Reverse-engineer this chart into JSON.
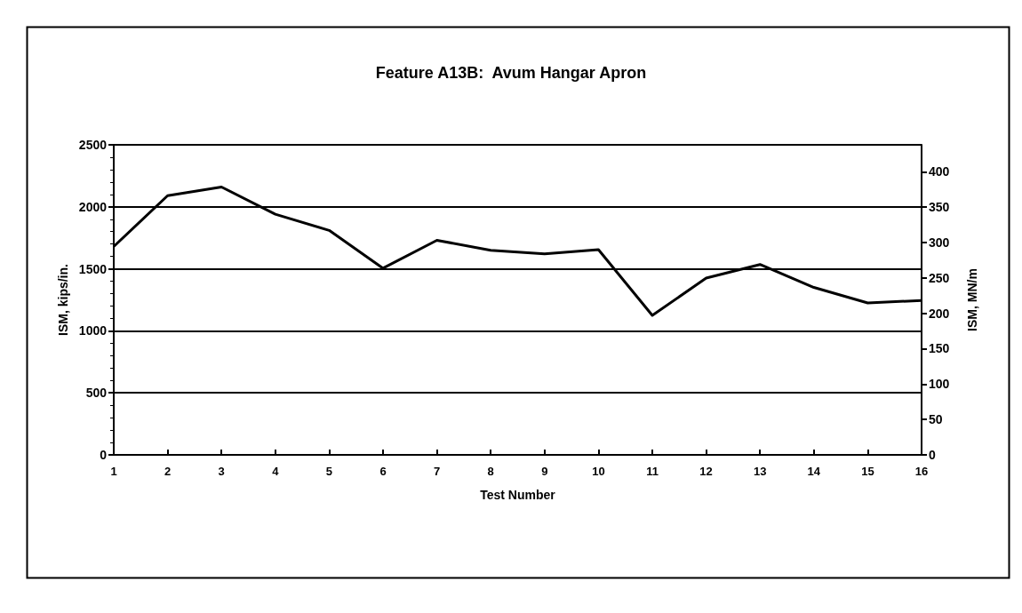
{
  "chart_data": {
    "type": "line",
    "title": "Feature A13B:  Avum Hangar Apron",
    "xlabel": "Test Number",
    "ylabel": "ISM, kips/in.",
    "y2label": "ISM, MN/m",
    "x": [
      1,
      2,
      3,
      4,
      5,
      6,
      7,
      8,
      9,
      10,
      11,
      12,
      13,
      14,
      15,
      16
    ],
    "xlim": [
      1,
      16
    ],
    "xticks": [
      1,
      2,
      3,
      4,
      5,
      6,
      7,
      8,
      9,
      10,
      11,
      12,
      13,
      14,
      15,
      16
    ],
    "series": [
      {
        "color": "#000000",
        "values": [
          1680,
          2090,
          2160,
          1940,
          1810,
          1505,
          1730,
          1650,
          1620,
          1655,
          1125,
          1425,
          1535,
          1350,
          1225,
          1245
        ]
      }
    ],
    "ylim": [
      0,
      2500
    ],
    "yticks": [
      0,
      500,
      1000,
      1500,
      2000,
      2500
    ],
    "y2lim": [
      0,
      438
    ],
    "y2ticks": [
      0,
      50,
      100,
      150,
      200,
      250,
      300,
      350,
      400
    ],
    "grid": "y",
    "marker": "none",
    "line_style": "solid"
  }
}
